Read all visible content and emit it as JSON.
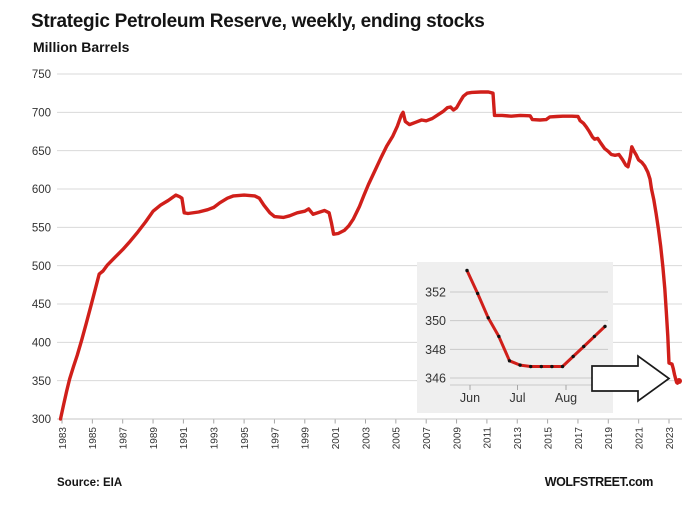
{
  "header": {
    "title": "Strategic Petroleum Reserve, weekly, ending stocks",
    "subtitle": "Million Barrels"
  },
  "footer": {
    "source": "Source: EIA",
    "watermark": "WOLFSTREET.com"
  },
  "colors": {
    "line": "#d01f1a",
    "grid": "#d9d9d9",
    "axis_line": "#c6c6c6",
    "tick": "#a6a6a6",
    "tick_text": "#333333",
    "text": "#141414",
    "inset_bg": "#efefef",
    "inset_grid": "#c9c9c9",
    "marker": "#111111",
    "arrow_fill": "#ffffff",
    "arrow_stroke": "#1a1a1a"
  },
  "chart_data": [
    {
      "type": "line",
      "title": "Strategic Petroleum Reserve, weekly, ending stocks",
      "ylabel": "Million Barrels",
      "xlim": [
        1982.67,
        2023.86
      ],
      "ylim": [
        300,
        750
      ],
      "y_ticks": [
        300,
        350,
        400,
        450,
        500,
        550,
        600,
        650,
        700,
        750
      ],
      "x_ticks": [
        1983,
        1985,
        1987,
        1989,
        1991,
        1993,
        1995,
        1997,
        1999,
        2001,
        2003,
        2005,
        2007,
        2009,
        2011,
        2013,
        2015,
        2017,
        2019,
        2021,
        2023
      ],
      "grid": "horizontal",
      "legend": "none",
      "series": [
        {
          "name": "SPR ending stocks (million barrels)",
          "points": [
            [
              1982.9,
              300
            ],
            [
              1983.1,
              318
            ],
            [
              1983.3,
              336
            ],
            [
              1983.5,
              352
            ],
            [
              1983.75,
              368
            ],
            [
              1984.0,
              383
            ],
            [
              1984.3,
              403
            ],
            [
              1984.6,
              425
            ],
            [
              1984.9,
              447
            ],
            [
              1985.2,
              470
            ],
            [
              1985.45,
              489
            ],
            [
              1985.7,
              493
            ],
            [
              1986.0,
              501
            ],
            [
              1986.5,
              511
            ],
            [
              1987.0,
              521
            ],
            [
              1987.5,
              532
            ],
            [
              1988.0,
              544
            ],
            [
              1988.5,
              557
            ],
            [
              1989.0,
              571
            ],
            [
              1989.5,
              579
            ],
            [
              1990.0,
              585
            ],
            [
              1990.5,
              592
            ],
            [
              1990.75,
              590
            ],
            [
              1990.9,
              588
            ],
            [
              1991.05,
              569
            ],
            [
              1991.3,
              568
            ],
            [
              1992.0,
              570
            ],
            [
              1992.6,
              573
            ],
            [
              1993.0,
              576
            ],
            [
              1993.4,
              582
            ],
            [
              1993.9,
              588
            ],
            [
              1994.3,
              591
            ],
            [
              1995.0,
              592
            ],
            [
              1995.7,
              591
            ],
            [
              1996.0,
              588
            ],
            [
              1996.3,
              579
            ],
            [
              1996.7,
              569
            ],
            [
              1997.0,
              564
            ],
            [
              1997.6,
              563
            ],
            [
              1998.0,
              565
            ],
            [
              1998.5,
              569
            ],
            [
              1999.0,
              571
            ],
            [
              1999.25,
              574
            ],
            [
              1999.55,
              567
            ],
            [
              2000.0,
              570
            ],
            [
              2000.3,
              572
            ],
            [
              2000.6,
              569
            ],
            [
              2000.75,
              556
            ],
            [
              2000.9,
              541
            ],
            [
              2001.2,
              542
            ],
            [
              2001.6,
              546
            ],
            [
              2001.9,
              552
            ],
            [
              2002.2,
              561
            ],
            [
              2002.6,
              577
            ],
            [
              2002.9,
              592
            ],
            [
              2003.2,
              606
            ],
            [
              2003.6,
              623
            ],
            [
              2004.0,
              640
            ],
            [
              2004.4,
              656
            ],
            [
              2004.8,
              669
            ],
            [
              2005.1,
              682
            ],
            [
              2005.35,
              696
            ],
            [
              2005.48,
              700
            ],
            [
              2005.62,
              688
            ],
            [
              2005.9,
              684
            ],
            [
              2006.3,
              687
            ],
            [
              2006.7,
              690
            ],
            [
              2007.0,
              689
            ],
            [
              2007.4,
              692
            ],
            [
              2007.8,
              697
            ],
            [
              2008.1,
              701
            ],
            [
              2008.4,
              706
            ],
            [
              2008.6,
              707
            ],
            [
              2008.8,
              703
            ],
            [
              2009.0,
              706
            ],
            [
              2009.2,
              713
            ],
            [
              2009.45,
              721
            ],
            [
              2009.7,
              725
            ],
            [
              2010.0,
              726
            ],
            [
              2010.6,
              726.5
            ],
            [
              2011.1,
              726.5
            ],
            [
              2011.4,
              725
            ],
            [
              2011.5,
              696
            ],
            [
              2012.0,
              696
            ],
            [
              2012.6,
              695
            ],
            [
              2013.2,
              696
            ],
            [
              2013.85,
              695.5
            ],
            [
              2014.0,
              690.5
            ],
            [
              2014.5,
              690
            ],
            [
              2014.9,
              690.5
            ],
            [
              2015.15,
              694
            ],
            [
              2015.6,
              694.5
            ],
            [
              2016.0,
              695
            ],
            [
              2016.6,
              695
            ],
            [
              2017.0,
              694.5
            ],
            [
              2017.15,
              689
            ],
            [
              2017.35,
              686
            ],
            [
              2017.55,
              681
            ],
            [
              2017.75,
              675
            ],
            [
              2017.95,
              668
            ],
            [
              2018.1,
              665
            ],
            [
              2018.3,
              666
            ],
            [
              2018.5,
              660
            ],
            [
              2018.75,
              653
            ],
            [
              2019.0,
              649
            ],
            [
              2019.2,
              645
            ],
            [
              2019.45,
              644
            ],
            [
              2019.7,
              645
            ],
            [
              2019.95,
              638
            ],
            [
              2020.15,
              631
            ],
            [
              2020.3,
              629
            ],
            [
              2020.45,
              642
            ],
            [
              2020.55,
              655
            ],
            [
              2020.7,
              649
            ],
            [
              2020.85,
              644
            ],
            [
              2021.0,
              638
            ],
            [
              2021.2,
              635
            ],
            [
              2021.4,
              630
            ],
            [
              2021.6,
              622
            ],
            [
              2021.75,
              613
            ],
            [
              2021.85,
              600
            ],
            [
              2022.0,
              586
            ],
            [
              2022.15,
              568
            ],
            [
              2022.3,
              548
            ],
            [
              2022.45,
              525
            ],
            [
              2022.6,
              498
            ],
            [
              2022.72,
              470
            ],
            [
              2022.82,
              440
            ],
            [
              2022.92,
              408
            ],
            [
              2023.0,
              373
            ],
            [
              2023.2,
              371.6
            ],
            [
              2023.28,
              366
            ],
            [
              2023.36,
              358
            ],
            [
              2023.44,
              352
            ],
            [
              2023.5,
              347.8
            ],
            [
              2023.56,
              346.8
            ],
            [
              2023.61,
              348.2
            ],
            [
              2023.66,
              349.6
            ]
          ]
        }
      ],
      "annotations": [
        {
          "type": "right-arrow",
          "target": "latest-data-point"
        }
      ]
    },
    {
      "type": "line",
      "role": "inset-detail",
      "x_tick_labels": [
        "Jun",
        "Jul",
        "Aug"
      ],
      "ylim": [
        345.4,
        353.8
      ],
      "y_ticks": [
        346,
        348,
        350,
        352
      ],
      "markers": true,
      "series": [
        {
          "name": "SPR weekly detail, Jun-Aug 2023",
          "points": [
            [
              0,
              353.5
            ],
            [
              1,
              351.9
            ],
            [
              2,
              350.2
            ],
            [
              3,
              348.9
            ],
            [
              4,
              347.2
            ],
            [
              5,
              346.9
            ],
            [
              6,
              346.8
            ],
            [
              7,
              346.8
            ],
            [
              8,
              346.8
            ],
            [
              9,
              346.8
            ],
            [
              10,
              347.5
            ],
            [
              11,
              348.2
            ],
            [
              12,
              348.9
            ],
            [
              13,
              349.6
            ]
          ]
        }
      ]
    }
  ]
}
